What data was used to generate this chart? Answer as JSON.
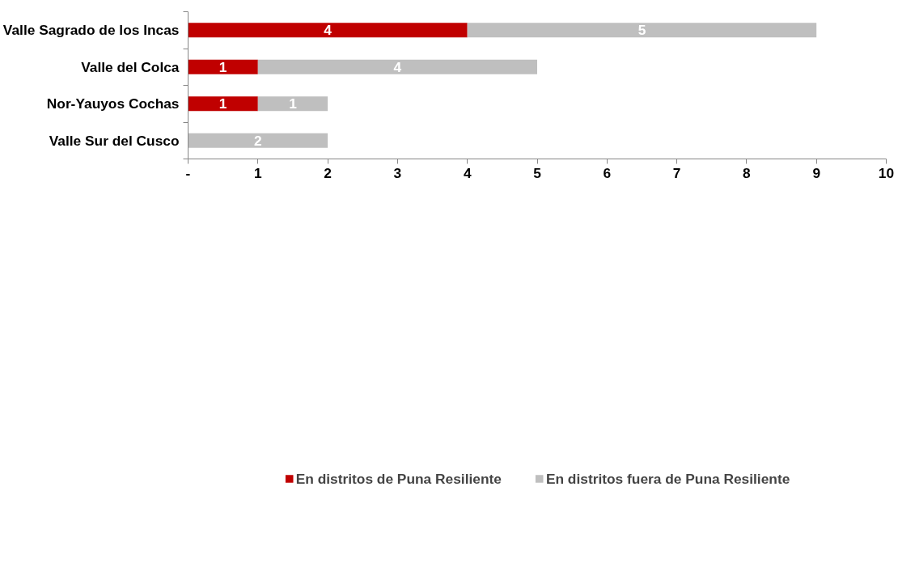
{
  "chart_data": {
    "type": "bar",
    "orientation": "horizontal",
    "stacked": true,
    "categories": [
      "Valle Sagrado de los Incas",
      "Valle del Colca",
      "Nor-Yauyos Cochas",
      "Valle Sur del Cusco"
    ],
    "series": [
      {
        "name": "En distritos de Puna Resiliente",
        "color": "#c00000",
        "values": [
          4,
          1,
          1,
          null
        ]
      },
      {
        "name": "En distritos fuera de Puna Resiliente",
        "color": "#bfbfbf",
        "values": [
          5,
          4,
          1,
          2
        ]
      }
    ],
    "xlim": [
      0,
      10
    ],
    "xticks": [
      {
        "value": 0,
        "label": "-"
      },
      1,
      2,
      3,
      4,
      5,
      6,
      7,
      8,
      9,
      10
    ],
    "data_labels": true,
    "grid": false,
    "legend": "bottom"
  }
}
